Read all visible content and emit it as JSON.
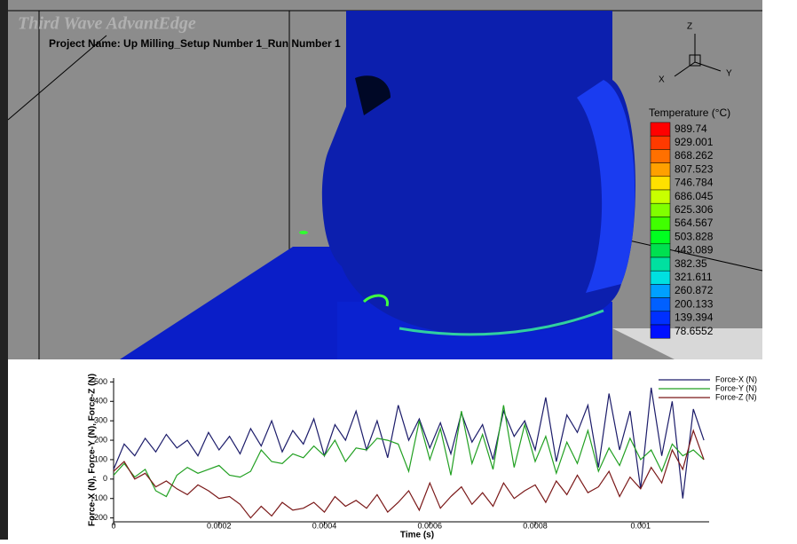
{
  "header": {
    "app": "Third Wave AdvantEdge",
    "project": "Project Name: Up Milling_Setup Number 1_Run Number 1"
  },
  "view": {
    "axes": {
      "z": "Z",
      "x": "X",
      "y": "Y"
    }
  },
  "colorbar": {
    "title": "Temperature (°C)",
    "labels": [
      989.74,
      929.001,
      868.262,
      807.523,
      746.784,
      686.045,
      625.306,
      564.567,
      503.828,
      443.089,
      382.35,
      321.611,
      260.872,
      200.133,
      139.394,
      78.6552
    ],
    "colors": [
      "#ff0000",
      "#ff3a00",
      "#ff7000",
      "#ffa000",
      "#ffe000",
      "#c8ff00",
      "#80ff00",
      "#40ff00",
      "#00ff20",
      "#00e050",
      "#00e0a0",
      "#00e0e0",
      "#00a0ff",
      "#0060ff",
      "#0030ff",
      "#0010ff"
    ]
  },
  "chart_data": {
    "type": "line",
    "y_label": "Force-X (N), Force-Y (N), Force-Z (N)",
    "x_label": "Time (s)",
    "x": [
      0,
      2e-05,
      4e-05,
      6e-05,
      8e-05,
      0.0001,
      0.00012,
      0.00014,
      0.00016,
      0.00018,
      0.0002,
      0.00022,
      0.00024,
      0.00026,
      0.00028,
      0.0003,
      0.00032,
      0.00034,
      0.00036,
      0.00038,
      0.0004,
      0.00042,
      0.00044,
      0.00046,
      0.00048,
      0.0005,
      0.00052,
      0.00054,
      0.00056,
      0.00058,
      0.0006,
      0.00062,
      0.00064,
      0.00066,
      0.00068,
      0.0007,
      0.00072,
      0.00074,
      0.00076,
      0.00078,
      0.0008,
      0.00082,
      0.00084,
      0.00086,
      0.00088,
      0.0009,
      0.00092,
      0.00094,
      0.00096,
      0.00098,
      0.001,
      0.00102,
      0.00104,
      0.00106,
      0.00108,
      0.0011,
      0.00112
    ],
    "series": [
      {
        "name": "Force-X (N)",
        "color": "#1c1c6a",
        "values": [
          50,
          180,
          120,
          210,
          140,
          230,
          160,
          200,
          120,
          240,
          150,
          220,
          130,
          260,
          170,
          300,
          140,
          250,
          180,
          310,
          120,
          280,
          200,
          350,
          150,
          300,
          110,
          380,
          200,
          310,
          160,
          290,
          130,
          340,
          190,
          280,
          100,
          350,
          220,
          300,
          150,
          420,
          90,
          330,
          240,
          380,
          60,
          440,
          150,
          350,
          -50,
          470,
          120,
          400,
          -100,
          360,
          200
        ]
      },
      {
        "name": "Force-Y (N)",
        "color": "#22a022",
        "values": [
          20,
          80,
          10,
          50,
          -60,
          -90,
          20,
          60,
          30,
          50,
          70,
          20,
          10,
          40,
          150,
          90,
          80,
          130,
          110,
          170,
          120,
          200,
          90,
          160,
          150,
          210,
          200,
          180,
          40,
          300,
          100,
          260,
          20,
          350,
          80,
          230,
          50,
          380,
          60,
          280,
          90,
          220,
          30,
          190,
          80,
          250,
          40,
          160,
          70,
          210,
          100,
          150,
          40,
          180,
          120,
          150,
          100
        ]
      },
      {
        "name": "Force-Z (N)",
        "color": "#7a1818",
        "values": [
          40,
          90,
          0,
          30,
          -40,
          -10,
          -50,
          -80,
          -30,
          -60,
          -100,
          -90,
          -130,
          -200,
          -140,
          -190,
          -120,
          -160,
          -150,
          -120,
          -170,
          -90,
          -140,
          -110,
          -150,
          -80,
          -170,
          -120,
          -60,
          -160,
          -20,
          -150,
          -90,
          -40,
          -130,
          -70,
          -140,
          -20,
          -100,
          -60,
          -30,
          -120,
          -10,
          -80,
          20,
          -70,
          -40,
          40,
          -90,
          10,
          -50,
          60,
          -20,
          150,
          50,
          250,
          100
        ]
      }
    ],
    "xlim": [
      0,
      0.00113
    ],
    "xticks": [
      0,
      0.0002,
      0.0004,
      0.0006,
      0.0008,
      0.001
    ],
    "ylim": [
      -220,
      520
    ],
    "yticks": [
      -200,
      -100,
      0,
      100,
      200,
      300,
      400,
      500
    ],
    "legend": "top-right"
  }
}
